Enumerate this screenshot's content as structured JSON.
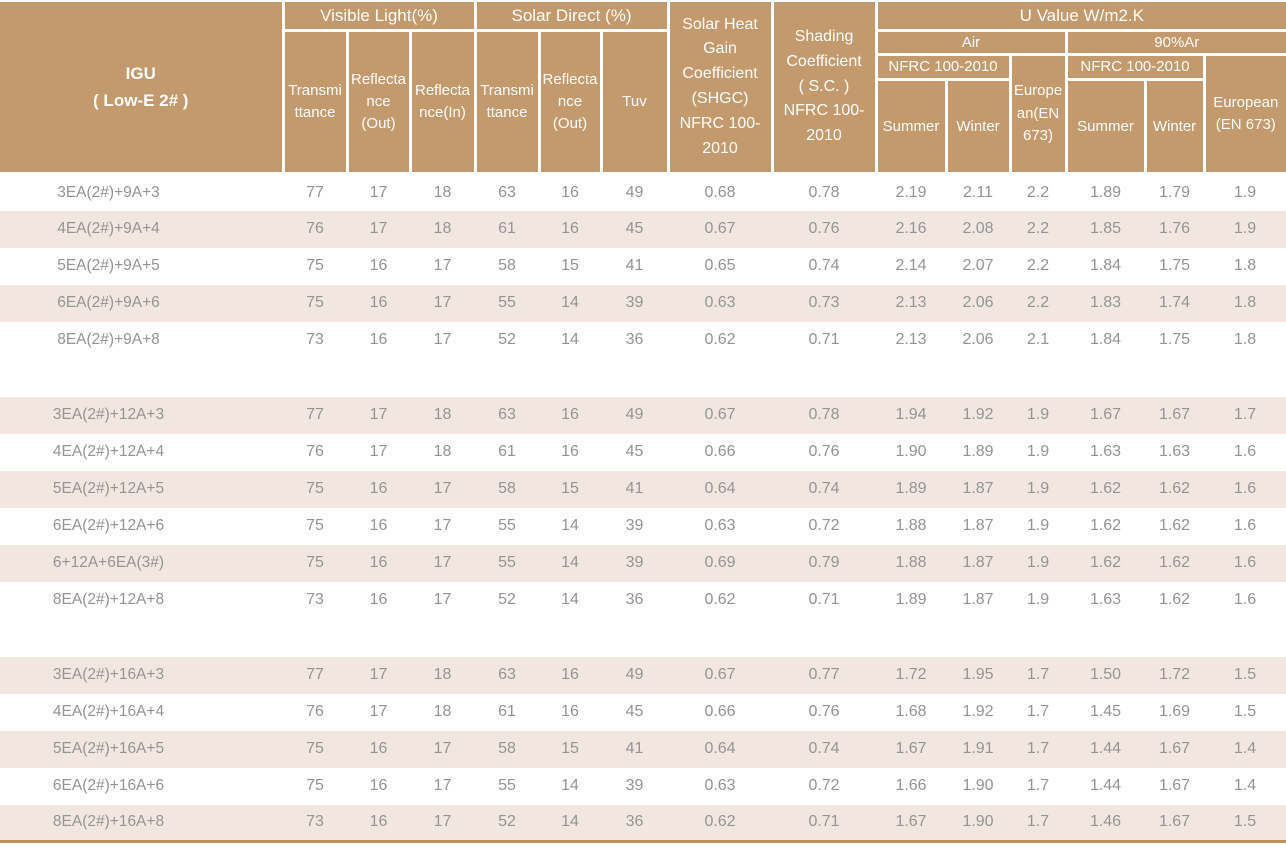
{
  "colors": {
    "header_bg": "#C39A6D",
    "row_stripe": "#F2E7E0",
    "data_text": "#949494",
    "header_text": "#FDFCFA",
    "bottom_rule": "#BF9257"
  },
  "table": {
    "headers": {
      "igu": "IGU\n( Low-E 2# )",
      "visible_light": "Visible Light(%)",
      "solar_direct": "Solar Direct (%)",
      "shgc": "Solar Heat\nGain\nCoefficient\n(SHGC)\nNFRC 100-\n2010",
      "shading": "Shading\nCoefficient\n( S.C. )\nNFRC 100-\n2010",
      "u_value": "U Value W/m2.K",
      "vl_transmittance": "Transmi\nttance",
      "vl_reflectance_out": "Reflecta\nnce\n(Out)",
      "vl_reflectance_in": "Reflecta\nnce(In)",
      "sd_transmittance": "Transmi\nttance",
      "sd_reflectance_out": "Reflecta\nnce\n(Out)",
      "tuv": "Tuv",
      "air": "Air",
      "argon": "90%Ar",
      "nfrc_air": "NFRC 100-2010",
      "nfrc_argon": "NFRC 100-2010",
      "european_air": "Europe\nan(EN\n673)",
      "european_argon": "European\n(EN 673)",
      "summer_air": "Summer",
      "winter_air": "Winter",
      "summer_argon": "Summer",
      "winter_argon": "Winter"
    },
    "row_groups": [
      {
        "rows": [
          {
            "label": "3EA(2#)+9A+3",
            "shaded": false,
            "values": [
              "77",
              "17",
              "18",
              "63",
              "16",
              "49",
              "0.68",
              "0.78",
              "2.19",
              "2.11",
              "2.2",
              "1.89",
              "1.79",
              "1.9"
            ]
          },
          {
            "label": "4EA(2#)+9A+4",
            "shaded": true,
            "values": [
              "76",
              "17",
              "18",
              "61",
              "16",
              "45",
              "0.67",
              "0.76",
              "2.16",
              "2.08",
              "2.2",
              "1.85",
              "1.76",
              "1.9"
            ]
          },
          {
            "label": "5EA(2#)+9A+5",
            "shaded": false,
            "values": [
              "75",
              "16",
              "17",
              "58",
              "15",
              "41",
              "0.65",
              "0.74",
              "2.14",
              "2.07",
              "2.2",
              "1.84",
              "1.75",
              "1.8"
            ]
          },
          {
            "label": "6EA(2#)+9A+6",
            "shaded": true,
            "values": [
              "75",
              "16",
              "17",
              "55",
              "14",
              "39",
              "0.63",
              "0.73",
              "2.13",
              "2.06",
              "2.2",
              "1.83",
              "1.74",
              "1.8"
            ]
          },
          {
            "label": "8EA(2#)+9A+8",
            "shaded": false,
            "values": [
              "73",
              "16",
              "17",
              "52",
              "14",
              "36",
              "0.62",
              "0.71",
              "2.13",
              "2.06",
              "2.1",
              "1.84",
              "1.75",
              "1.8"
            ]
          }
        ]
      },
      {
        "rows": [
          {
            "label": "3EA(2#)+12A+3",
            "shaded": true,
            "values": [
              "77",
              "17",
              "18",
              "63",
              "16",
              "49",
              "0.67",
              "0.78",
              "1.94",
              "1.92",
              "1.9",
              "1.67",
              "1.67",
              "1.7"
            ]
          },
          {
            "label": "4EA(2#)+12A+4",
            "shaded": false,
            "values": [
              "76",
              "17",
              "18",
              "61",
              "16",
              "45",
              "0.66",
              "0.76",
              "1.90",
              "1.89",
              "1.9",
              "1.63",
              "1.63",
              "1.6"
            ]
          },
          {
            "label": "5EA(2#)+12A+5",
            "shaded": true,
            "values": [
              "75",
              "16",
              "17",
              "58",
              "15",
              "41",
              "0.64",
              "0.74",
              "1.89",
              "1.87",
              "1.9",
              "1.62",
              "1.62",
              "1.6"
            ]
          },
          {
            "label": "6EA(2#)+12A+6",
            "shaded": false,
            "values": [
              "75",
              "16",
              "17",
              "55",
              "14",
              "39",
              "0.63",
              "0.72",
              "1.88",
              "1.87",
              "1.9",
              "1.62",
              "1.62",
              "1.6"
            ]
          },
          {
            "label": "6+12A+6EA(3#)",
            "shaded": true,
            "values": [
              "75",
              "16",
              "17",
              "55",
              "14",
              "39",
              "0.69",
              "0.79",
              "1.88",
              "1.87",
              "1.9",
              "1.62",
              "1.62",
              "1.6"
            ]
          },
          {
            "label": "8EA(2#)+12A+8",
            "shaded": false,
            "values": [
              "73",
              "16",
              "17",
              "52",
              "14",
              "36",
              "0.62",
              "0.71",
              "1.89",
              "1.87",
              "1.9",
              "1.63",
              "1.62",
              "1.6"
            ]
          }
        ]
      },
      {
        "rows": [
          {
            "label": "3EA(2#)+16A+3",
            "shaded": true,
            "values": [
              "77",
              "17",
              "18",
              "63",
              "16",
              "49",
              "0.67",
              "0.77",
              "1.72",
              "1.95",
              "1.7",
              "1.50",
              "1.72",
              "1.5"
            ]
          },
          {
            "label": "4EA(2#)+16A+4",
            "shaded": false,
            "values": [
              "76",
              "17",
              "18",
              "61",
              "16",
              "45",
              "0.66",
              "0.76",
              "1.68",
              "1.92",
              "1.7",
              "1.45",
              "1.69",
              "1.5"
            ]
          },
          {
            "label": "5EA(2#)+16A+5",
            "shaded": true,
            "values": [
              "75",
              "16",
              "17",
              "58",
              "15",
              "41",
              "0.64",
              "0.74",
              "1.67",
              "1.91",
              "1.7",
              "1.44",
              "1.67",
              "1.4"
            ]
          },
          {
            "label": "6EA(2#)+16A+6",
            "shaded": false,
            "values": [
              "75",
              "16",
              "17",
              "55",
              "14",
              "39",
              "0.63",
              "0.72",
              "1.66",
              "1.90",
              "1.7",
              "1.44",
              "1.67",
              "1.4"
            ]
          },
          {
            "label": "8EA(2#)+16A+8",
            "shaded": true,
            "values": [
              "73",
              "16",
              "17",
              "52",
              "14",
              "36",
              "0.62",
              "0.71",
              "1.67",
              "1.90",
              "1.7",
              "1.46",
              "1.67",
              "1.5"
            ]
          }
        ]
      }
    ]
  }
}
